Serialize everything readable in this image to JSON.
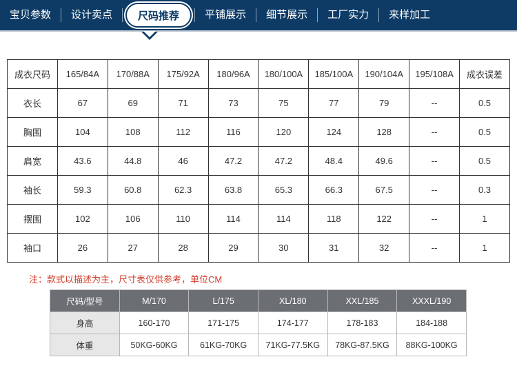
{
  "nav": {
    "items": [
      "宝贝参数",
      "设计卖点",
      "尺码推荐",
      "平铺展示",
      "细节展示",
      "工厂实力",
      "来样加工"
    ],
    "active_index": 2
  },
  "size_table": {
    "header": [
      "成衣尺码",
      "165/84A",
      "170/88A",
      "175/92A",
      "180/96A",
      "180/100A",
      "185/100A",
      "190/104A",
      "195/108A",
      "成衣误差"
    ],
    "rows": [
      {
        "label": "衣长",
        "cells": [
          "67",
          "69",
          "71",
          "73",
          "75",
          "77",
          "79",
          "--",
          "0.5"
        ]
      },
      {
        "label": "胸围",
        "cells": [
          "104",
          "108",
          "112",
          "116",
          "120",
          "124",
          "128",
          "--",
          "0.5"
        ]
      },
      {
        "label": "肩宽",
        "cells": [
          "43.6",
          "44.8",
          "46",
          "47.2",
          "47.2",
          "48.4",
          "49.6",
          "--",
          "0.5"
        ]
      },
      {
        "label": "袖长",
        "cells": [
          "59.3",
          "60.8",
          "62.3",
          "63.8",
          "65.3",
          "66.3",
          "67.5",
          "--",
          "0.3"
        ]
      },
      {
        "label": "摆围",
        "cells": [
          "102",
          "106",
          "110",
          "114",
          "114",
          "118",
          "122",
          "--",
          "1"
        ]
      },
      {
        "label": "袖口",
        "cells": [
          "26",
          "27",
          "28",
          "29",
          "30",
          "31",
          "32",
          "--",
          "1"
        ]
      }
    ]
  },
  "note": "注：款式以描述为主，尺寸表仅供参考，单位CM",
  "fit_table": {
    "header": [
      "尺码/型号",
      "M/170",
      "L/175",
      "XL/180",
      "XXL/185",
      "XXXL/190"
    ],
    "rows": [
      {
        "label": "身高",
        "cells": [
          "160-170",
          "171-175",
          "174-177",
          "178-183",
          "184-188"
        ]
      },
      {
        "label": "体重",
        "cells": [
          "50KG-60KG",
          "61KG-70KG",
          "71KG-77.5KG",
          "78KG-87.5KG",
          "88KG-100KG"
        ]
      }
    ]
  }
}
